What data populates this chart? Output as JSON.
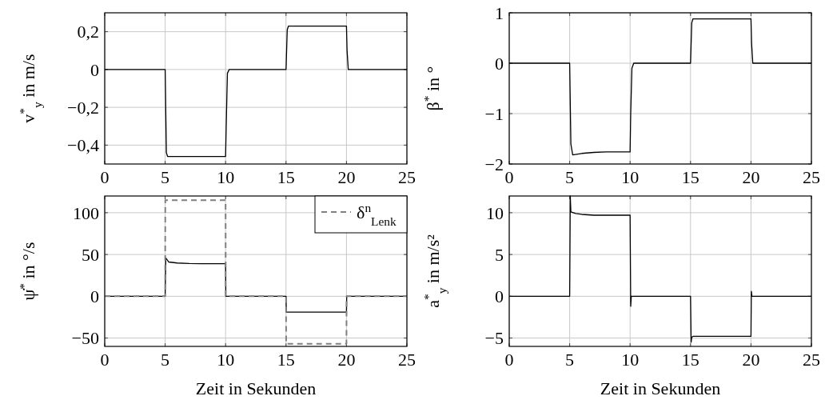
{
  "chart_data": [
    {
      "type": "line",
      "ylabel": "v$^{*}$$_{y}$ in m/s",
      "xlim": [
        0,
        25
      ],
      "xticks": [
        0,
        5,
        10,
        15,
        20,
        25
      ],
      "ylim": [
        -0.5,
        0.3
      ],
      "yticks": [
        {
          "value": -0.4,
          "label": "−0,4"
        },
        {
          "value": -0.2,
          "label": "−0,2"
        },
        0,
        {
          "value": 0.2,
          "label": "0,2"
        }
      ],
      "grid": true,
      "legend": false,
      "series": [
        {
          "color": "#000000",
          "x": [
            0,
            5,
            5.1,
            5.2,
            10,
            10.05,
            10.15,
            10.3,
            15,
            15.1,
            15.2,
            20,
            20.05,
            20.15,
            25
          ],
          "values": [
            0,
            0,
            -0.44,
            -0.46,
            -0.46,
            -0.3,
            -0.02,
            0,
            0,
            0.21,
            0.23,
            0.23,
            0.1,
            0,
            0
          ]
        }
      ]
    },
    {
      "type": "line",
      "ylabel": "β$^{*}$ in °",
      "xlim": [
        0,
        25
      ],
      "xticks": [
        0,
        5,
        10,
        15,
        20,
        25
      ],
      "ylim": [
        -2,
        1
      ],
      "yticks": [
        {
          "value": -2,
          "label": "−2"
        },
        {
          "value": -1,
          "label": "−1"
        },
        0,
        1
      ],
      "grid": true,
      "legend": false,
      "series": [
        {
          "color": "#000000",
          "x": [
            0,
            5,
            5.1,
            5.25,
            6,
            7,
            8,
            10,
            10.05,
            10.15,
            10.3,
            15,
            15.1,
            15.2,
            20,
            20.05,
            20.15,
            25
          ],
          "values": [
            0,
            0,
            -1.6,
            -1.82,
            -1.79,
            -1.77,
            -1.76,
            -1.76,
            -1.0,
            -0.1,
            0,
            0,
            0.8,
            0.88,
            0.88,
            0.4,
            0,
            0
          ]
        }
      ]
    },
    {
      "type": "line",
      "ylabel": "ψ̇$^{*}$ in °/s",
      "xlabel": "Zeit in Sekunden",
      "xlim": [
        0,
        25
      ],
      "xticks": [
        0,
        5,
        10,
        15,
        20,
        25
      ],
      "ylim": [
        -60,
        120
      ],
      "yticks": [
        {
          "value": -50,
          "label": "−50"
        },
        0,
        50,
        100
      ],
      "grid": true,
      "legend": "top right",
      "series": [
        {
          "color": "#000000",
          "line_style": "solid",
          "x": [
            0,
            5,
            5.05,
            5.3,
            6,
            7,
            8,
            10,
            10.02,
            15,
            15.02,
            20,
            20.02,
            25
          ],
          "values": [
            0,
            0,
            46,
            41,
            39.8,
            39.2,
            39,
            39,
            0,
            0,
            -19,
            -19,
            0,
            0
          ]
        },
        {
          "name": "δ$^{n}$$_{Lenk}$",
          "color": "#808080",
          "line_style": "dashed",
          "x": [
            0,
            5,
            5.01,
            10,
            10.01,
            15,
            15.01,
            20,
            20.01,
            25
          ],
          "values": [
            0,
            0,
            115,
            115,
            0,
            0,
            -57,
            -57,
            0,
            0
          ]
        }
      ]
    },
    {
      "type": "line",
      "ylabel": "a$^{*}$$_{y}$ in m/s²",
      "xlabel": "Zeit in Sekunden",
      "xlim": [
        0,
        25
      ],
      "xticks": [
        0,
        5,
        10,
        15,
        20,
        25
      ],
      "ylim": [
        -6,
        12
      ],
      "yticks": [
        {
          "value": -5,
          "label": "−5"
        },
        0,
        5,
        10
      ],
      "grid": true,
      "legend": false,
      "series": [
        {
          "color": "#000000",
          "x": [
            0,
            5,
            5.05,
            5.1,
            5.5,
            6,
            7,
            8,
            10,
            10.05,
            10.1,
            10.15,
            15,
            15.05,
            15.1,
            15.2,
            20,
            20.03,
            20.08,
            25
          ],
          "values": [
            0,
            0,
            12,
            10.1,
            9.9,
            9.8,
            9.7,
            9.7,
            9.7,
            -1.2,
            0,
            0,
            0,
            -5.5,
            -4.9,
            -4.8,
            -4.8,
            0.6,
            0,
            0
          ]
        }
      ]
    }
  ]
}
